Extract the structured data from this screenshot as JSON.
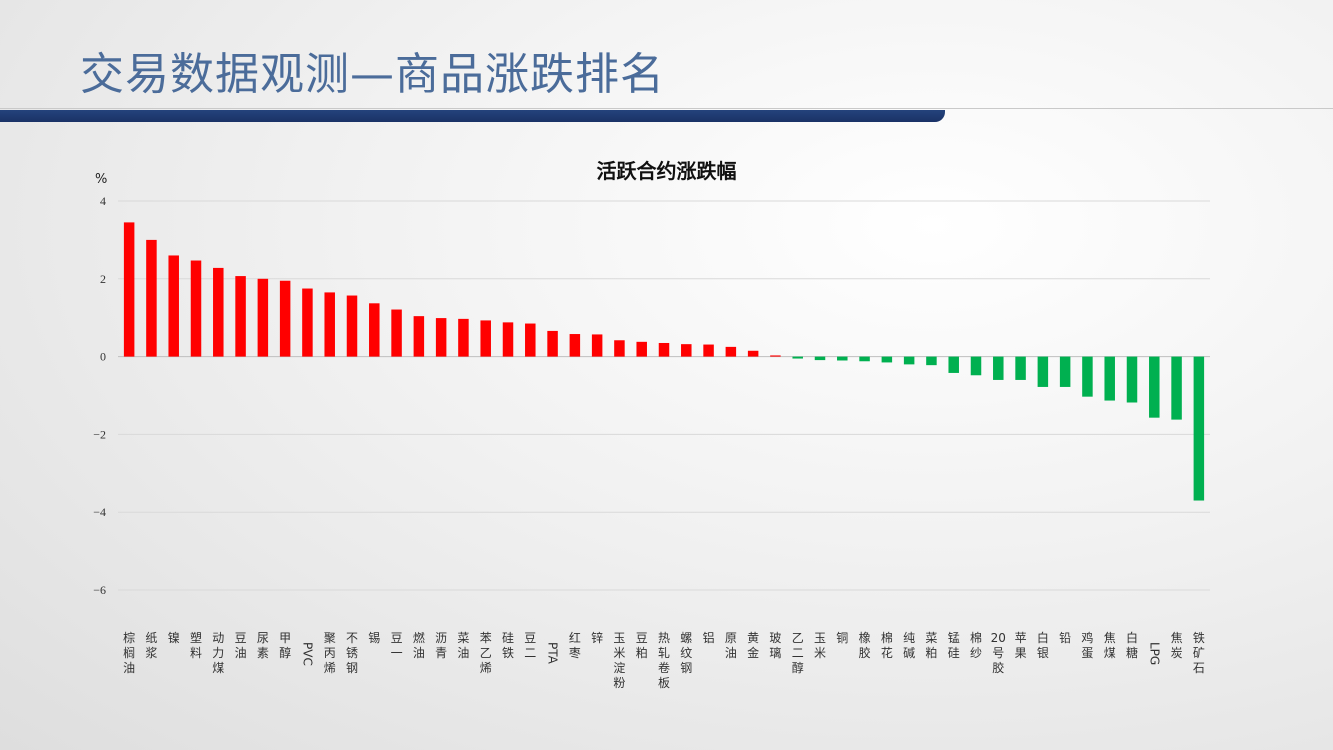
{
  "page": {
    "title": "交易数据观测—商品涨跌排名"
  },
  "chart_data": {
    "type": "bar",
    "title": "活跃合约涨跌幅",
    "ylabel": "%",
    "ylim": [
      -6,
      4
    ],
    "yticks": [
      4,
      2,
      0,
      -2,
      -4,
      -6
    ],
    "grid": true,
    "categories": [
      "棕榈油",
      "纸浆",
      "镍",
      "塑料",
      "动力煤",
      "豆油",
      "尿素",
      "甲醇",
      "PVC",
      "聚丙烯",
      "不锈钢",
      "锡",
      "豆一",
      "燃油",
      "沥青",
      "菜油",
      "苯乙烯",
      "硅铁",
      "豆二",
      "PTA",
      "红枣",
      "锌",
      "玉米淀粉",
      "豆粕",
      "热轧卷板",
      "螺纹钢",
      "铝",
      "原油",
      "黄金",
      "玻璃",
      "乙二醇",
      "玉米",
      "铜",
      "橡胶",
      "棉花",
      "纯碱",
      "菜粕",
      "锰硅",
      "棉纱",
      "20号胶",
      "苹果",
      "白银",
      "铅",
      "鸡蛋",
      "焦煤",
      "白糖",
      "LPG",
      "焦炭",
      "铁矿石"
    ],
    "values": [
      3.45,
      3.0,
      2.6,
      2.47,
      2.28,
      2.07,
      2.0,
      1.95,
      1.75,
      1.65,
      1.57,
      1.37,
      1.21,
      1.04,
      0.99,
      0.97,
      0.93,
      0.88,
      0.85,
      0.66,
      0.58,
      0.57,
      0.42,
      0.38,
      0.35,
      0.32,
      0.31,
      0.25,
      0.15,
      0.03,
      -0.05,
      -0.09,
      -0.1,
      -0.12,
      -0.15,
      -0.2,
      -0.22,
      -0.42,
      -0.48,
      -0.6,
      -0.6,
      -0.78,
      -0.78,
      -1.03,
      -1.13,
      -1.18,
      -1.57,
      -1.62,
      -3.7
    ],
    "colors": {
      "up": "#ff0000",
      "down": "#00b050",
      "grid": "#d9d9d9",
      "axis": "#bfbfbf"
    }
  }
}
